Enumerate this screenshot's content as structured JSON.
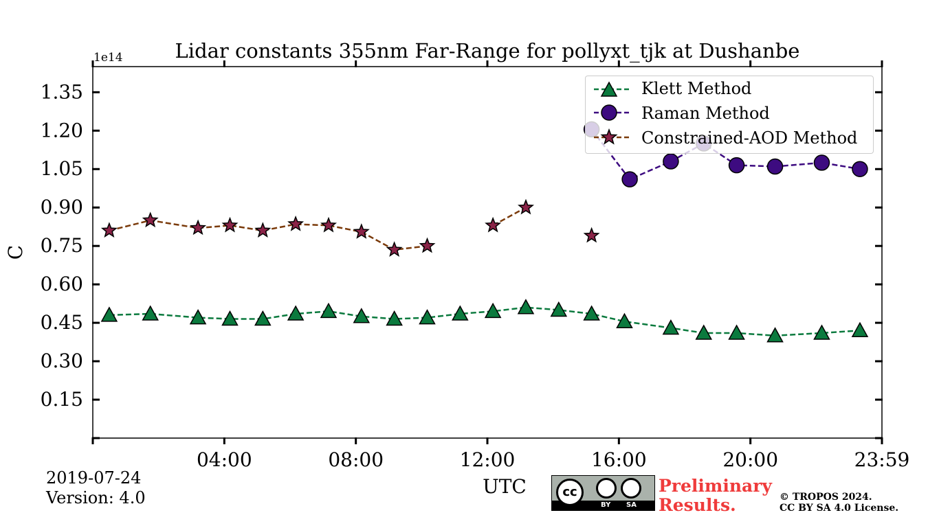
{
  "chart_data": {
    "type": "line",
    "title": "Lidar constants 355nm Far-Range for pollyxt_tjk at Dushanbe",
    "xlabel": "UTC",
    "ylabel": "C",
    "y_offset_label": "1e14",
    "y_scale": 100000000000000.0,
    "xlim_hours": [
      0,
      24
    ],
    "ylim": [
      0,
      1.45
    ],
    "x_ticks": [
      {
        "hour": 0,
        "label": ""
      },
      {
        "hour": 4,
        "label": "04:00"
      },
      {
        "hour": 8,
        "label": "08:00"
      },
      {
        "hour": 12,
        "label": "12:00"
      },
      {
        "hour": 16,
        "label": "16:00"
      },
      {
        "hour": 20,
        "label": "20:00"
      },
      {
        "hour": 24,
        "label": "23:59"
      }
    ],
    "y_ticks": [
      {
        "value": 0,
        "label": ""
      },
      {
        "value": 0.15,
        "label": "0.15"
      },
      {
        "value": 0.3,
        "label": "0.30"
      },
      {
        "value": 0.45,
        "label": "0.45"
      },
      {
        "value": 0.6,
        "label": "0.60"
      },
      {
        "value": 0.75,
        "label": "0.75"
      },
      {
        "value": 0.9,
        "label": "0.90"
      },
      {
        "value": 1.05,
        "label": "1.05"
      },
      {
        "value": 1.2,
        "label": "1.20"
      },
      {
        "value": 1.35,
        "label": "1.35"
      }
    ],
    "grid": false,
    "legend_position": "top-right",
    "series": [
      {
        "name": "Klett Method",
        "marker": "triangle",
        "color": "#0b7a3e",
        "x": [
          0.5,
          1.75,
          3.2,
          4.17,
          5.17,
          6.17,
          7.17,
          8.17,
          9.17,
          10.17,
          11.17,
          12.17,
          13.17,
          14.17,
          15.17,
          16.17,
          17.58,
          18.58,
          19.58,
          20.75,
          22.17,
          23.33
        ],
        "y": [
          0.48,
          0.485,
          0.47,
          0.465,
          0.465,
          0.485,
          0.495,
          0.475,
          0.465,
          0.47,
          0.485,
          0.495,
          0.51,
          0.5,
          0.485,
          0.455,
          0.43,
          0.41,
          0.41,
          0.4,
          0.41,
          0.42
        ]
      },
      {
        "name": "Raman Method",
        "marker": "circle",
        "color": "#3d0b80",
        "x": [
          15.17,
          16.33,
          17.58,
          18.58,
          19.58,
          20.75,
          22.17,
          23.33
        ],
        "y": [
          1.205,
          1.01,
          1.08,
          1.15,
          1.065,
          1.06,
          1.075,
          1.05
        ]
      },
      {
        "name": "Constrained-AOD Method",
        "marker": "star",
        "color": "#8a2347",
        "line_color": "#7a3a0a",
        "x": [
          0.5,
          1.75,
          3.2,
          4.17,
          5.17,
          6.17,
          7.17,
          8.17,
          9.17,
          10.17,
          12.17,
          13.17,
          15.17
        ],
        "y": [
          0.81,
          0.85,
          0.82,
          0.83,
          0.81,
          0.835,
          0.83,
          0.805,
          0.735,
          0.75,
          0.83,
          0.9,
          0.79
        ],
        "segments": [
          [
            0,
            9
          ],
          [
            10,
            11
          ],
          [
            12,
            12
          ]
        ]
      }
    ]
  },
  "footer": {
    "date": "2019-07-24",
    "version": "Version: 4.0",
    "preliminary_line1": "Preliminary",
    "preliminary_line2": "Results.",
    "copyright_line1": "© TROPOS 2024.",
    "copyright_line2": "CC BY SA 4.0 License.",
    "license_badge": {
      "main": "cc",
      "by": "BY",
      "sa": "SA"
    }
  }
}
